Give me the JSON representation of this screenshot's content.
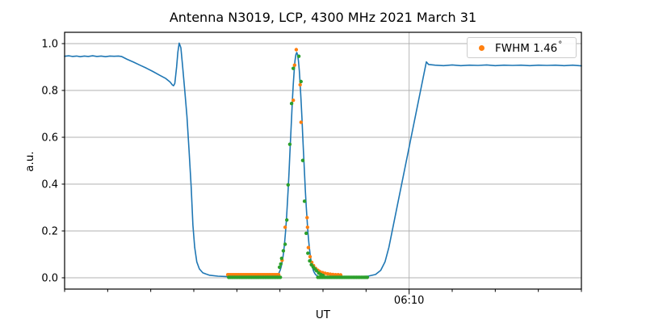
{
  "chart_data": {
    "type": "line",
    "title": "Antenna N3019, LCP, 4300 MHz 2021 March 31",
    "xlabel": "UT",
    "ylabel": "a.u.",
    "legend": {
      "label": "FWHM 1.46",
      "degree_symbol": "°",
      "marker_color": "#ff7f0e",
      "position": "upper right"
    },
    "colors": {
      "line": "#1f77b4",
      "scatter_orange": "#ff7f0e",
      "scatter_green": "#2ca02c",
      "grid": "#b0b0b0",
      "spine": "#000000"
    },
    "grid": true,
    "x_axis": {
      "unit": "minutes",
      "range_minutes": [
        0,
        12
      ],
      "minor_tick_step_minutes": 1,
      "major_ticks": [
        {
          "position_minutes": 8,
          "label": "06:10"
        }
      ]
    },
    "y_axis": {
      "ylim": [
        -0.048,
        1.048
      ],
      "ticks": [
        {
          "value": 0.0,
          "label": "0.0"
        },
        {
          "value": 0.2,
          "label": "0.2"
        },
        {
          "value": 0.4,
          "label": "0.4"
        },
        {
          "value": 0.6,
          "label": "0.6"
        },
        {
          "value": 0.8,
          "label": "0.8"
        },
        {
          "value": 1.0,
          "label": "1.0"
        }
      ]
    },
    "line_series": {
      "name": "antenna-scan-signal",
      "pre_peak_points": [
        [
          0.0,
          0.946
        ],
        [
          0.1,
          0.948
        ],
        [
          0.18,
          0.945
        ],
        [
          0.28,
          0.947
        ],
        [
          0.36,
          0.944
        ],
        [
          0.46,
          0.947
        ],
        [
          0.55,
          0.945
        ],
        [
          0.65,
          0.948
        ],
        [
          0.75,
          0.945
        ],
        [
          0.85,
          0.947
        ],
        [
          0.95,
          0.944
        ],
        [
          1.05,
          0.947
        ],
        [
          1.15,
          0.946
        ],
        [
          1.25,
          0.947
        ],
        [
          1.32,
          0.945
        ],
        [
          1.45,
          0.933
        ],
        [
          1.6,
          0.921
        ],
        [
          1.75,
          0.908
        ],
        [
          1.9,
          0.895
        ],
        [
          2.05,
          0.881
        ],
        [
          2.2,
          0.866
        ],
        [
          2.35,
          0.851
        ],
        [
          2.45,
          0.836
        ],
        [
          2.5,
          0.824
        ],
        [
          2.53,
          0.82
        ],
        [
          2.56,
          0.83
        ],
        [
          2.6,
          0.9
        ],
        [
          2.63,
          0.965
        ],
        [
          2.66,
          1.002
        ],
        [
          2.7,
          0.982
        ],
        [
          2.74,
          0.905
        ],
        [
          2.79,
          0.8
        ],
        [
          2.84,
          0.69
        ],
        [
          2.89,
          0.545
        ],
        [
          2.94,
          0.385
        ],
        [
          2.98,
          0.225
        ],
        [
          3.02,
          0.13
        ],
        [
          3.07,
          0.068
        ],
        [
          3.13,
          0.038
        ],
        [
          3.21,
          0.021
        ],
        [
          3.36,
          0.011
        ],
        [
          3.56,
          0.007
        ],
        [
          3.8,
          0.005
        ],
        [
          4.1,
          0.004
        ],
        [
          4.4,
          0.004
        ],
        [
          4.7,
          0.004
        ],
        [
          4.87,
          0.004
        ]
      ],
      "gaussian_fit": {
        "center_minutes": 5.39,
        "sigma_minutes": 0.145,
        "amplitude": 0.958,
        "baseline": 0.004,
        "x_from": 4.87,
        "x_to": 5.91,
        "step": 0.02
      },
      "post_peak_points": [
        [
          5.95,
          0.004
        ],
        [
          6.25,
          0.004
        ],
        [
          6.55,
          0.004
        ],
        [
          6.85,
          0.005
        ],
        [
          7.05,
          0.007
        ],
        [
          7.22,
          0.014
        ],
        [
          7.34,
          0.032
        ],
        [
          7.44,
          0.068
        ],
        [
          7.53,
          0.13
        ],
        [
          8.4,
          0.922
        ],
        [
          8.45,
          0.911
        ],
        [
          8.6,
          0.908
        ],
        [
          8.8,
          0.906
        ],
        [
          9.0,
          0.909
        ],
        [
          9.2,
          0.906
        ],
        [
          9.4,
          0.908
        ],
        [
          9.6,
          0.907
        ],
        [
          9.8,
          0.909
        ],
        [
          10.0,
          0.906
        ],
        [
          10.2,
          0.908
        ],
        [
          10.4,
          0.907
        ],
        [
          10.6,
          0.908
        ],
        [
          10.8,
          0.906
        ],
        [
          11.0,
          0.908
        ],
        [
          11.2,
          0.907
        ],
        [
          11.4,
          0.908
        ],
        [
          11.6,
          0.906
        ],
        [
          11.8,
          0.908
        ],
        [
          12.0,
          0.905
        ]
      ]
    },
    "scatter_series": [
      {
        "name": "measured-points",
        "color_key": "scatter_orange",
        "runs": [
          {
            "x0": 3.79,
            "x1": 4.97,
            "n": 34,
            "y": 0.013
          }
        ],
        "points": [
          [
            5.05,
            0.075
          ],
          [
            5.12,
            0.216
          ],
          [
            5.31,
            0.758
          ],
          [
            5.34,
            0.908
          ],
          [
            5.38,
            0.974
          ],
          [
            5.47,
            0.824
          ],
          [
            5.49,
            0.664
          ],
          [
            5.63,
            0.257
          ],
          [
            5.64,
            0.216
          ],
          [
            5.66,
            0.129
          ],
          [
            5.7,
            0.09
          ],
          [
            5.74,
            0.066
          ],
          [
            5.78,
            0.052
          ],
          [
            5.83,
            0.04
          ],
          [
            5.88,
            0.032
          ],
          [
            5.93,
            0.026
          ],
          [
            5.99,
            0.022
          ],
          [
            6.05,
            0.019
          ],
          [
            6.11,
            0.017
          ],
          [
            6.17,
            0.015
          ],
          [
            6.23,
            0.014
          ],
          [
            6.29,
            0.013
          ],
          [
            6.35,
            0.013
          ],
          [
            6.41,
            0.012
          ]
        ]
      },
      {
        "name": "gaussian-fit-points",
        "color_key": "scatter_green",
        "runs": [
          {
            "x0": 3.81,
            "x1": 5.01,
            "n": 35,
            "y": 0.002
          },
          {
            "x0": 5.88,
            "x1": 7.03,
            "n": 33,
            "y": 0.002
          }
        ],
        "points": [
          [
            4.99,
            0.045
          ],
          [
            5.02,
            0.059
          ],
          [
            5.04,
            0.083
          ],
          [
            5.08,
            0.115
          ],
          [
            5.12,
            0.143
          ],
          [
            5.16,
            0.247
          ],
          [
            5.19,
            0.397
          ],
          [
            5.23,
            0.57
          ],
          [
            5.27,
            0.744
          ],
          [
            5.31,
            0.894
          ],
          [
            5.44,
            0.946
          ],
          [
            5.49,
            0.838
          ],
          [
            5.53,
            0.501
          ],
          [
            5.57,
            0.327
          ],
          [
            5.61,
            0.19
          ],
          [
            5.65,
            0.105
          ],
          [
            5.69,
            0.072
          ],
          [
            5.73,
            0.056
          ],
          [
            5.77,
            0.047
          ],
          [
            5.81,
            0.038
          ],
          [
            5.85,
            0.03
          ],
          [
            5.9,
            0.02
          ],
          [
            5.95,
            0.014
          ],
          [
            6.0,
            0.01
          ]
        ]
      }
    ]
  }
}
